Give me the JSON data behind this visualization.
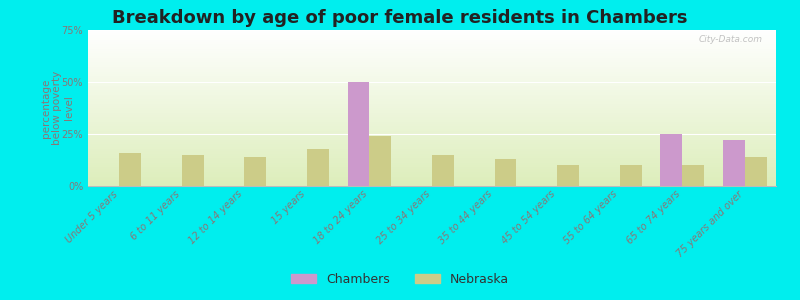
{
  "title": "Breakdown by age of poor female residents in Chambers",
  "ylabel": "percentage\nbelow poverty\nlevel",
  "categories": [
    "Under 5 years",
    "6 to 11 years",
    "12 to 14 years",
    "15 years",
    "18 to 24 years",
    "25 to 34 years",
    "35 to 44 years",
    "45 to 54 years",
    "55 to 64 years",
    "65 to 74 years",
    "75 years and over"
  ],
  "chambers_values": [
    0,
    0,
    0,
    0,
    50,
    0,
    0,
    0,
    0,
    25,
    22
  ],
  "nebraska_values": [
    16,
    15,
    14,
    18,
    24,
    15,
    13,
    10,
    10,
    10,
    14
  ],
  "chambers_color": "#cc99cc",
  "nebraska_color": "#cccc88",
  "background_color": "#00eeee",
  "ylim": [
    0,
    75
  ],
  "yticks": [
    0,
    25,
    50,
    75
  ],
  "ytick_labels": [
    "0%",
    "25%",
    "50%",
    "75%"
  ],
  "bar_width": 0.35,
  "title_fontsize": 13,
  "axis_label_fontsize": 7.5,
  "tick_label_fontsize": 7,
  "legend_labels": [
    "Chambers",
    "Nebraska"
  ],
  "watermark": "City-Data.com",
  "tick_color": "#887777",
  "gradient_top": "#ffffff",
  "gradient_bottom": "#ddeebb"
}
